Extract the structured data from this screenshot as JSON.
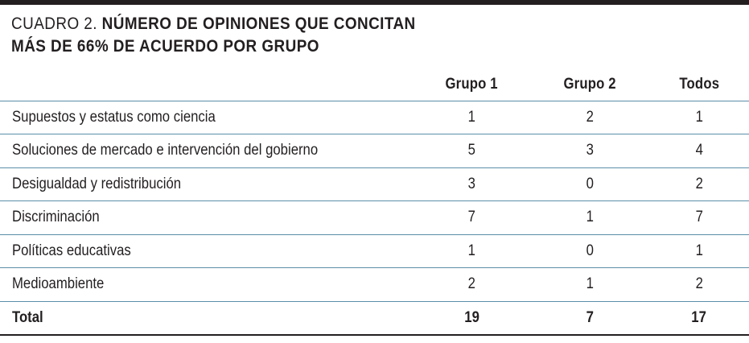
{
  "title": {
    "prefix": "CUADRO 2.",
    "bold_line1": "NÚMERO DE OPINIONES QUE CONCITAN",
    "bold_line2": "MÁS DE 66% DE ACUERDO POR GRUPO"
  },
  "table": {
    "headers": [
      "",
      "Grupo 1",
      "Grupo 2",
      "Todos"
    ],
    "rows": [
      {
        "label": "Supuestos y estatus como ciencia",
        "g1": "1",
        "g2": "2",
        "todos": "1"
      },
      {
        "label": "Soluciones de mercado e intervención del gobierno",
        "g1": "5",
        "g2": "3",
        "todos": "4"
      },
      {
        "label": "Desigualdad y redistribución",
        "g1": "3",
        "g2": "0",
        "todos": "2"
      },
      {
        "label": "Discriminación",
        "g1": "7",
        "g2": "1",
        "todos": "7"
      },
      {
        "label": "Políticas educativas",
        "g1": "1",
        "g2": "0",
        "todos": "1"
      },
      {
        "label": "Medioambiente",
        "g1": "2",
        "g2": "1",
        "todos": "2"
      }
    ],
    "total": {
      "label": "Total",
      "g1": "19",
      "g2": "7",
      "todos": "17"
    }
  },
  "colors": {
    "text": "#231f20",
    "rule": "#5a8fa8",
    "top_bar": "#231f20"
  }
}
